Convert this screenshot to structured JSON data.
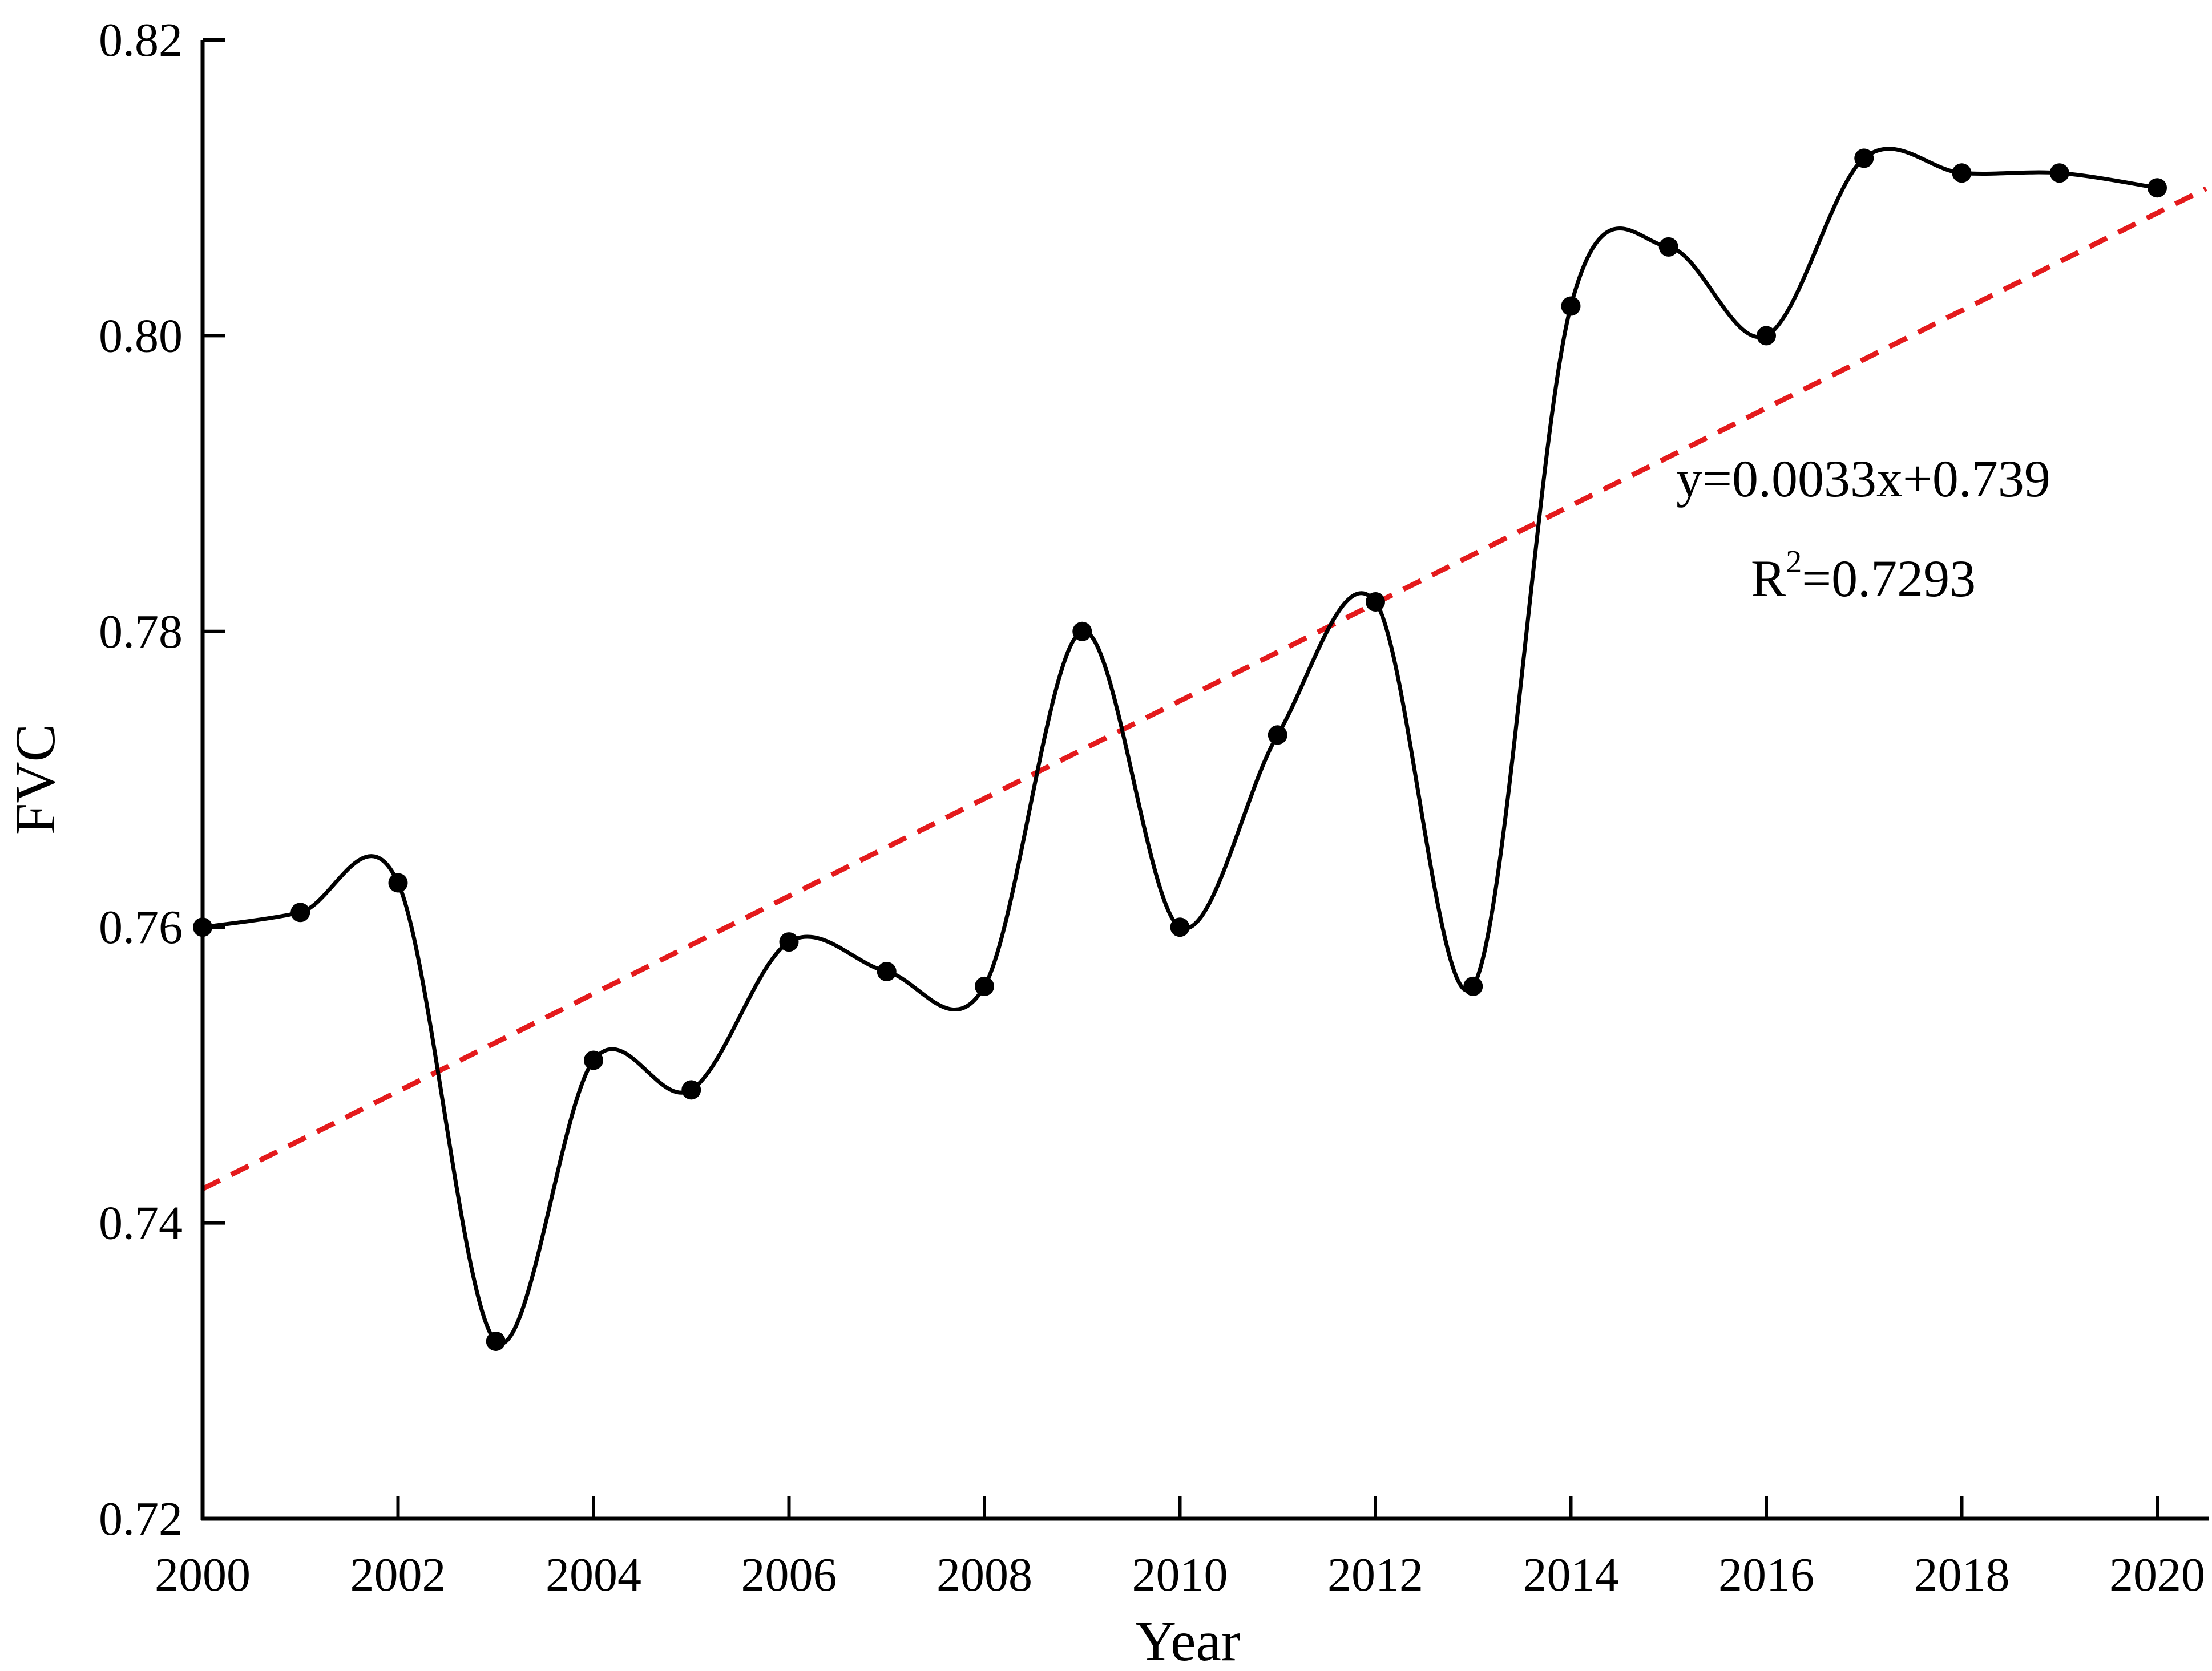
{
  "chart_data": {
    "type": "line",
    "xlabel": "Year",
    "ylabel": "FVC",
    "xlim": [
      2000,
      2020.5
    ],
    "ylim": [
      0.72,
      0.82
    ],
    "xticks": [
      2000,
      2002,
      2004,
      2006,
      2008,
      2010,
      2012,
      2014,
      2016,
      2018,
      2020
    ],
    "xtick_labels": [
      "2000",
      "2002",
      "2004",
      "2006",
      "2008",
      "2010",
      "2012",
      "2014",
      "2016",
      "2018",
      "2020"
    ],
    "yticks": [
      0.72,
      0.74,
      0.76,
      0.78,
      0.8,
      0.82
    ],
    "ytick_labels": [
      "0.72",
      "0.74",
      "0.76",
      "0.78",
      "0.80",
      "0.82"
    ],
    "grid": false,
    "series": [
      {
        "x": [
          2000,
          2001,
          2002,
          2003,
          2004,
          2005,
          2006,
          2007,
          2008,
          2009,
          2010,
          2011,
          2012,
          2013,
          2014,
          2015,
          2016,
          2017,
          2018,
          2019,
          2020
        ],
        "y": [
          0.76,
          0.761,
          0.763,
          0.732,
          0.751,
          0.749,
          0.759,
          0.757,
          0.756,
          0.78,
          0.76,
          0.773,
          0.782,
          0.756,
          0.802,
          0.806,
          0.8,
          0.812,
          0.811,
          0.811,
          0.81
        ],
        "color": "#000000",
        "style": "smooth-line-with-markers"
      }
    ],
    "trendline": {
      "slope": 0.0033,
      "intercept": 0.739,
      "color": "#e41a1c",
      "style": "dashed"
    },
    "annotations": {
      "equation": "y=0.0033x+0.739",
      "r2_prefix": "R",
      "r2_exp": "2",
      "r2_value": "=0.7293"
    }
  }
}
